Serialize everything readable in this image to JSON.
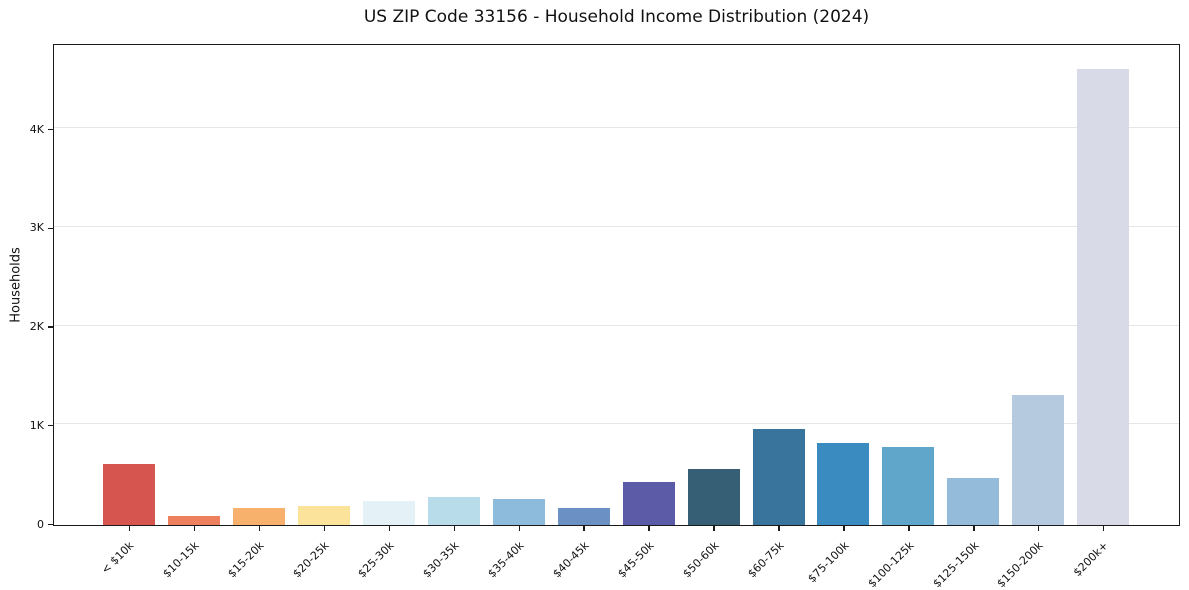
{
  "chart_data": {
    "type": "bar",
    "title": "US ZIP Code 33156 - Household Income Distribution (2024)",
    "xlabel": "",
    "ylabel": "Households",
    "categories": [
      "< $10k",
      "$10-15k",
      "$15-20k",
      "$20-25k",
      "$25-30k",
      "$30-35k",
      "$35-40k",
      "$40-45k",
      "$45-50k",
      "$50-60k",
      "$60-75k",
      "$75-100k",
      "$100-125k",
      "$125-150k",
      "$150-200k",
      "$200k+"
    ],
    "values": [
      620,
      90,
      175,
      195,
      245,
      280,
      260,
      170,
      435,
      570,
      975,
      830,
      790,
      475,
      1320,
      4620
    ],
    "bar_colors": [
      "#d6554e",
      "#ef805f",
      "#f7b16c",
      "#fbe39c",
      "#e4f1f6",
      "#b8dcea",
      "#8cbbdb",
      "#6b90c4",
      "#5c5ba7",
      "#365e75",
      "#38749c",
      "#3a8cc0",
      "#60a6ca",
      "#94bbd9",
      "#b6cadf",
      "#d8dae7"
    ],
    "yticks": [
      {
        "value": 0,
        "label": "0"
      },
      {
        "value": 1000,
        "label": "1K"
      },
      {
        "value": 2000,
        "label": "2K"
      },
      {
        "value": 3000,
        "label": "3K"
      },
      {
        "value": 4000,
        "label": "4K"
      }
    ],
    "ylim": [
      0,
      4851
    ],
    "grid": true,
    "grid_color": "#e6e6e6",
    "axis_color": "#1a1a1a",
    "background": "#ffffff",
    "legend_position": "none"
  }
}
